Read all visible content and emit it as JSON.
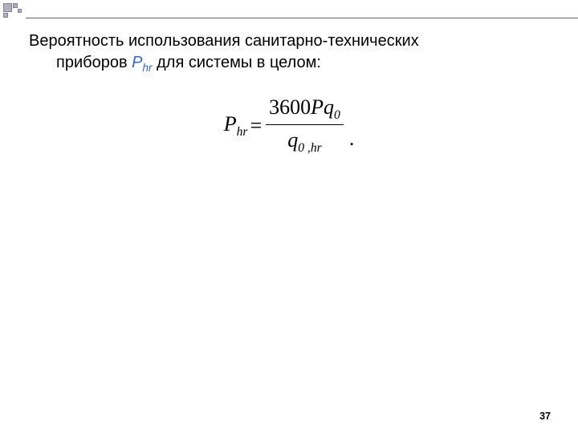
{
  "decoration": {
    "border_color": "#808090",
    "fill_muted": "#a0a0b0",
    "line_color": "#606070"
  },
  "text": {
    "line1": "Вероятность использования санитарно-технических",
    "line2_a": "приборов ",
    "var_letter": "Р",
    "var_sub": "hr",
    "line2_b": " для системы в целом:"
  },
  "formula": {
    "lhs_var": "P",
    "lhs_sub": "hr",
    "eq": "=",
    "num_const": "3600",
    "num_var1": "P",
    "num_var2": "q",
    "num_var2_sub": "0",
    "den_var": "q",
    "den_sub": "0 ,hr",
    "period": ".",
    "font": "Times New Roman",
    "fontsize": 26,
    "color": "#000000"
  },
  "page_number": "37",
  "colors": {
    "text": "#000000",
    "variable": "#3366cc",
    "background": "#ffffff"
  }
}
